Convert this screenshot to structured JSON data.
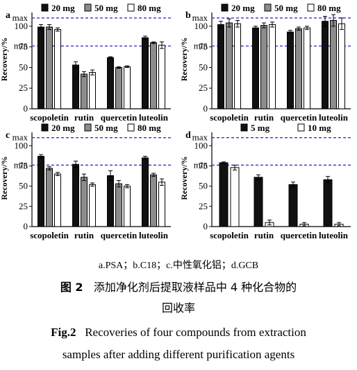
{
  "figure": {
    "subcaption": "a.PSA；b.C18；c.中性氧化铝；d.GCB",
    "caption_cn_label": "图 2",
    "caption_cn_text_line1": "添加净化剂后提取液样品中 4 种化合物的",
    "caption_cn_text_line2": "回收率",
    "caption_en_label": "Fig.2",
    "caption_en_text_line1": "Recoveries of four compounds from extraction",
    "caption_en_text_line2": "samples after adding different purification agents"
  },
  "colors": {
    "black": "#111111",
    "gray": "#8c8c8c",
    "white": "#ffffff",
    "ref_line": "#3333cc"
  },
  "chart_data": [
    {
      "panel": "a",
      "type": "bar",
      "categories": [
        "scopoletin",
        "rutin",
        "quercetin",
        "luteolin"
      ],
      "ylabel": "Recovery/%",
      "ylim": [
        0,
        120
      ],
      "yticks": [
        0,
        25,
        50,
        75,
        100
      ],
      "reference_lines": [
        {
          "label": "max",
          "value": 110
        },
        {
          "label": "min",
          "value": 76
        }
      ],
      "series": [
        {
          "name": "20 mg",
          "color": "black",
          "values": [
            99,
            53,
            62,
            86
          ],
          "errors": [
            3,
            4,
            1,
            2
          ]
        },
        {
          "name": "50 mg",
          "color": "gray",
          "values": [
            99,
            42,
            50,
            80
          ],
          "errors": [
            3,
            3,
            1,
            1
          ]
        },
        {
          "name": "80 mg",
          "color": "white",
          "values": [
            96,
            44,
            51,
            77
          ],
          "errors": [
            2,
            3,
            1,
            4
          ]
        }
      ]
    },
    {
      "panel": "b",
      "type": "bar",
      "categories": [
        "scopoletin",
        "rutin",
        "quercetin",
        "luteolin"
      ],
      "ylabel": "Recovery/%",
      "ylim": [
        0,
        120
      ],
      "yticks": [
        0,
        25,
        50,
        75,
        100
      ],
      "reference_lines": [
        {
          "label": "max",
          "value": 110
        },
        {
          "label": "min",
          "value": 76
        }
      ],
      "series": [
        {
          "name": "20 mg",
          "color": "black",
          "values": [
            102,
            98,
            93,
            106
          ],
          "errors": [
            4,
            2,
            2,
            6
          ]
        },
        {
          "name": "50 mg",
          "color": "gray",
          "values": [
            104,
            101,
            97,
            107
          ],
          "errors": [
            5,
            3,
            2,
            7
          ]
        },
        {
          "name": "80 mg",
          "color": "white",
          "values": [
            103,
            102,
            98,
            103
          ],
          "errors": [
            4,
            3,
            2,
            7
          ]
        }
      ]
    },
    {
      "panel": "c",
      "type": "bar",
      "categories": [
        "scopoletin",
        "rutin",
        "quercetin",
        "luteolin"
      ],
      "ylabel": "Recovery/%",
      "ylim": [
        0,
        120
      ],
      "yticks": [
        0,
        25,
        50,
        75,
        100
      ],
      "reference_lines": [
        {
          "label": "max",
          "value": 110
        },
        {
          "label": "min",
          "value": 76
        }
      ],
      "series": [
        {
          "name": "20 mg",
          "color": "black",
          "values": [
            87,
            77,
            63,
            85
          ],
          "errors": [
            2,
            4,
            6,
            2
          ]
        },
        {
          "name": "50 mg",
          "color": "gray",
          "values": [
            72,
            61,
            53,
            64
          ],
          "errors": [
            2,
            4,
            4,
            2
          ]
        },
        {
          "name": "80 mg",
          "color": "white",
          "values": [
            65,
            52,
            50,
            55
          ],
          "errors": [
            2,
            2,
            2,
            4
          ]
        }
      ]
    },
    {
      "panel": "d",
      "type": "bar",
      "categories": [
        "scopoletin",
        "rutin",
        "quercetin",
        "luteolin"
      ],
      "ylabel": "Recovery/%",
      "ylim": [
        0,
        120
      ],
      "yticks": [
        0,
        25,
        50,
        75,
        100
      ],
      "reference_lines": [
        {
          "label": "max",
          "value": 110
        },
        {
          "label": "min",
          "value": 76
        }
      ],
      "series": [
        {
          "name": "5 mg",
          "color": "black",
          "values": [
            79,
            61,
            52,
            58
          ],
          "errors": [
            1,
            3,
            3,
            4
          ]
        },
        {
          "name": "10 mg",
          "color": "white",
          "values": [
            73,
            5,
            3,
            3
          ],
          "errors": [
            3,
            3,
            2,
            2
          ]
        }
      ]
    }
  ]
}
